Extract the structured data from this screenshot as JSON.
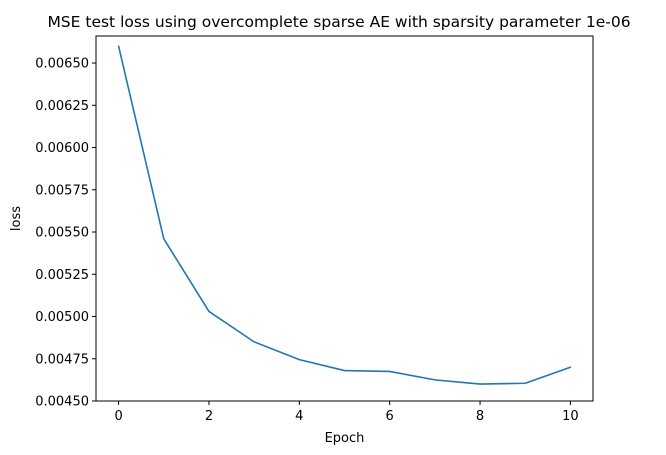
{
  "chart_data": {
    "type": "line",
    "title": "MSE test loss using overcomplete sparse AE with sparsity parameter 1e-06",
    "xlabel": "Epoch",
    "ylabel": "loss",
    "xlim": [
      -0.5,
      10.5
    ],
    "ylim": [
      0.0045,
      0.00666
    ],
    "xticks": [
      0,
      2,
      4,
      6,
      8,
      10
    ],
    "xtick_labels": [
      "0",
      "2",
      "4",
      "6",
      "8",
      "10"
    ],
    "yticks": [
      0.0045,
      0.00475,
      0.005,
      0.00525,
      0.0055,
      0.00575,
      0.006,
      0.00625,
      0.0065
    ],
    "ytick_labels": [
      "0.00450",
      "0.00475",
      "0.00500",
      "0.00525",
      "0.00550",
      "0.00575",
      "0.00600",
      "0.00625",
      "0.00650"
    ],
    "grid": false,
    "series": [
      {
        "color": "#1f77b4",
        "x": [
          0,
          1,
          2,
          3,
          4,
          5,
          6,
          7,
          8,
          9,
          10
        ],
        "values": [
          0.0066,
          0.00546,
          0.00503,
          0.00485,
          0.004745,
          0.00468,
          0.004675,
          0.004625,
          0.0046,
          0.004605,
          0.0047
        ]
      }
    ]
  }
}
